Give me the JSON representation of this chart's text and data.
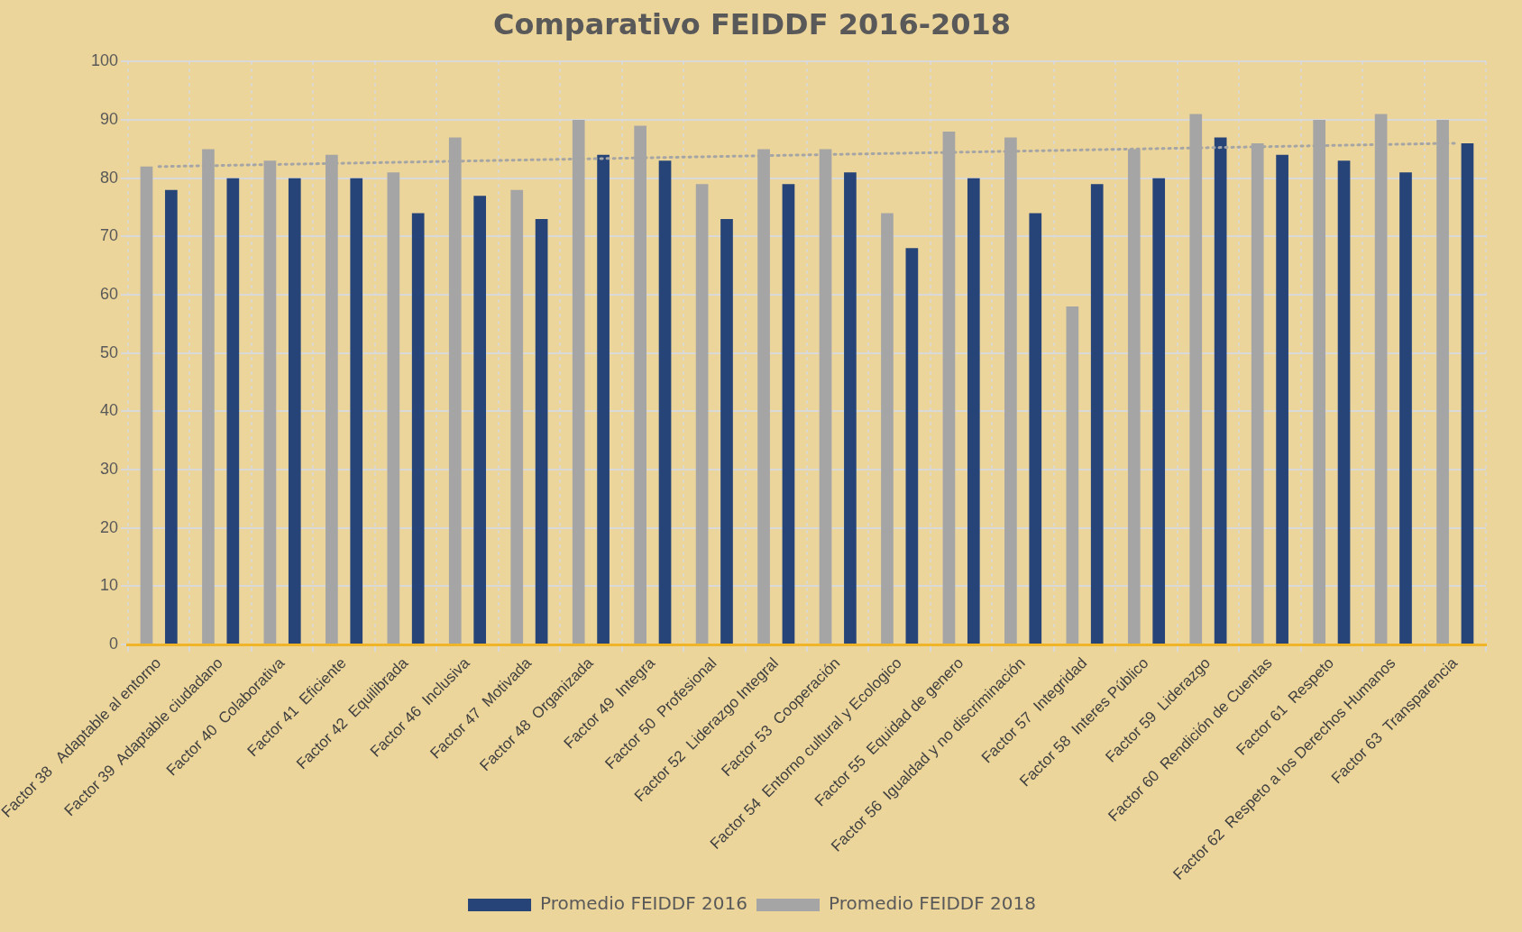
{
  "chart_data": {
    "type": "bar",
    "title": "Comparativo FEIDDF 2016-2018",
    "categories": [
      "Factor 38   Adaptable al entorno",
      "Factor 39  Adaptable ciudadano",
      "Factor 40  Colaborativa",
      "Factor 41  Eficiente",
      "Factor 42  Equilibrada",
      "Factor 46  Inclusiva",
      "Factor 47  Motivada",
      "Factor 48  Organizada",
      "Factor 49  Integra",
      "Factor 50  Profesional",
      "Factor 52  Liderazgo Integral",
      "Factor 53  Cooperación",
      "Factor 54  Entorno cultural y Ecologico",
      "Factor 55  Equidad de genero",
      "Factor 56  Igualdad y no discriminación",
      "Factor 57  Integridad",
      "Factor 58  Interes Público",
      "Factor 59  Liderazgo",
      "Factor 60  Rendición de Cuentas",
      "Factor 61  Respeto",
      "Factor 62  Respeto a los Derechos Humanos",
      "Factor 63  Transparencia"
    ],
    "series": [
      {
        "name": "Promedio FEIDDF 2018",
        "color": "#a5a5a5",
        "values": [
          82,
          85,
          83,
          84,
          81,
          87,
          78,
          90,
          89,
          79,
          85,
          85,
          74,
          88,
          87,
          58,
          85,
          91,
          86,
          90,
          91,
          90
        ]
      },
      {
        "name": "Promedio FEIDDF 2016",
        "color": "#264478",
        "values": [
          78,
          80,
          80,
          80,
          74,
          77,
          73,
          84,
          83,
          73,
          79,
          81,
          68,
          80,
          74,
          79,
          80,
          87,
          84,
          83,
          81,
          86
        ]
      },
      {
        "type": "line",
        "color": "#a5a5a5",
        "line_style": "dotted",
        "x": [
          "Factor 38   Adaptable al entorno",
          "Factor 63  Transparencia"
        ],
        "values": [
          82,
          86
        ]
      }
    ],
    "ylim": [
      0,
      100
    ],
    "yticks": [
      0,
      10,
      20,
      30,
      40,
      50,
      60,
      70,
      80,
      90,
      100
    ],
    "grid": true,
    "legend": "bottom"
  }
}
